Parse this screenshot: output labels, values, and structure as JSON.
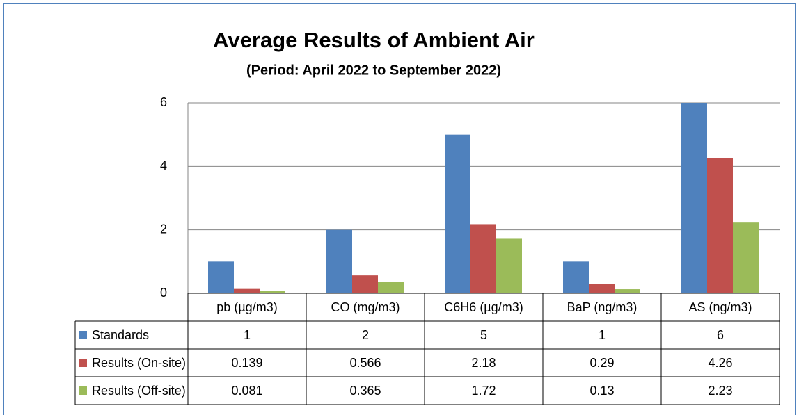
{
  "chart_data": {
    "type": "bar",
    "title": "Average Results of Ambient Air",
    "subtitle": "(Period: April 2022 to September 2022)",
    "categories": [
      "pb (µg/m3)",
      "CO (mg/m3)",
      "C6H6 (µg/m3)",
      "BaP (ng/m3)",
      "AS (ng/m3)"
    ],
    "series": [
      {
        "name": "Standards",
        "color": "#4f81bd",
        "values": [
          1,
          2,
          5,
          1,
          6
        ]
      },
      {
        "name": "Results (On-site)",
        "color": "#c0504d",
        "values": [
          0.139,
          0.566,
          2.18,
          0.29,
          4.26
        ]
      },
      {
        "name": "Results (Off-site)",
        "color": "#9bbb59",
        "values": [
          0.081,
          0.365,
          1.72,
          0.13,
          2.23
        ]
      }
    ],
    "ylim": [
      0,
      6
    ],
    "yticks": [
      0,
      2,
      4,
      6
    ],
    "grid": true
  }
}
